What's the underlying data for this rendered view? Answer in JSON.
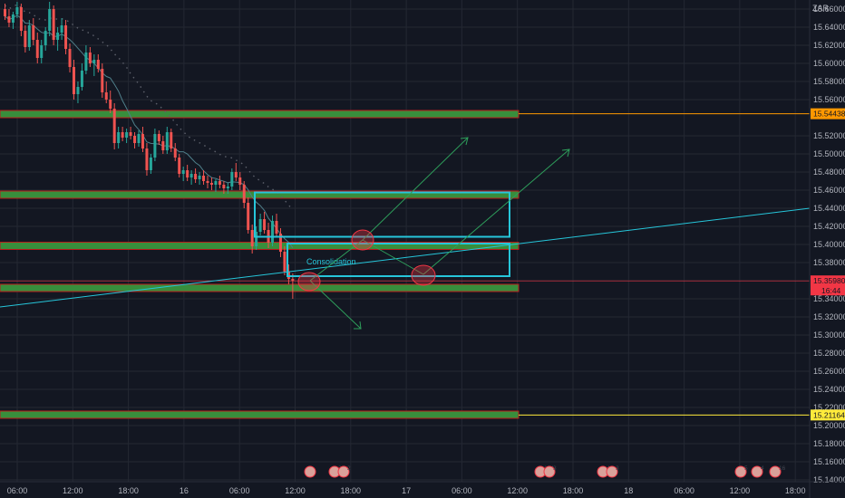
{
  "chart_data": {
    "type": "candlestick",
    "currency": "ZAR",
    "y_axis_ticks": [
      "15.66000",
      "15.64000",
      "15.62000",
      "15.60000",
      "15.58000",
      "15.56000",
      "15.52000",
      "15.50000",
      "15.48000",
      "15.46000",
      "15.44000",
      "15.42000",
      "15.40000",
      "15.38000",
      "15.36000",
      "15.34000",
      "15.32000",
      "15.30000",
      "15.28000",
      "15.26000",
      "15.24000",
      "15.22000",
      "15.20000",
      "15.18000",
      "15.16000",
      "15.14000"
    ],
    "x_axis_ticks": [
      "06:00",
      "12:00",
      "18:00",
      "16",
      "06:00",
      "12:00",
      "18:00",
      "17",
      "06:00",
      "12:00",
      "18:00",
      "18",
      "06:00",
      "12:00",
      "18:00"
    ],
    "ylim": [
      15.132,
      15.668
    ],
    "price_levels": [
      {
        "label": "15.54438",
        "value": 15.54438,
        "color": "#ff9800"
      },
      {
        "label": "15.21164",
        "value": 15.21164,
        "color": "#ffeb3b"
      }
    ],
    "current_price": {
      "label": "15.35980",
      "value": 15.3598,
      "countdown": "16:44",
      "color": "#f23645"
    },
    "zones": [
      {
        "value": 15.544,
        "color": "#388e3c"
      },
      {
        "value": 15.455,
        "color": "#388e3c"
      },
      {
        "value": 15.3985,
        "color": "#388e3c"
      },
      {
        "value": 15.352,
        "color": "#388e3c"
      },
      {
        "value": 15.212,
        "color": "#388e3c"
      }
    ],
    "consolidation_label": "Consolidation",
    "event_markers": [
      {
        "text": ""
      },
      {
        "text": "3"
      },
      {
        "text": "2"
      },
      {
        "text": "104"
      },
      {
        "text": "3"
      },
      {
        "text": "4"
      },
      {
        "text": "3"
      },
      {
        "text": "5"
      },
      {
        "text": "4"
      },
      {
        "text": "16"
      }
    ],
    "candles": [
      [
        15.66,
        15.666,
        15.648,
        15.652
      ],
      [
        15.652,
        15.66,
        15.64,
        15.645
      ],
      [
        15.645,
        15.657,
        15.638,
        15.654
      ],
      [
        15.654,
        15.668,
        15.65,
        15.662
      ],
      [
        15.662,
        15.666,
        15.63,
        15.636
      ],
      [
        15.636,
        15.642,
        15.612,
        15.618
      ],
      [
        15.618,
        15.648,
        15.614,
        15.642
      ],
      [
        15.642,
        15.65,
        15.62,
        15.626
      ],
      [
        15.626,
        15.634,
        15.6,
        15.606
      ],
      [
        15.606,
        15.626,
        15.6,
        15.62
      ],
      [
        15.62,
        15.64,
        15.614,
        15.636
      ],
      [
        15.636,
        15.668,
        15.63,
        15.66
      ],
      [
        15.66,
        15.664,
        15.62,
        15.626
      ],
      [
        15.626,
        15.64,
        15.614,
        15.634
      ],
      [
        15.634,
        15.65,
        15.626,
        15.642
      ],
      [
        15.642,
        15.648,
        15.61,
        15.616
      ],
      [
        15.616,
        15.622,
        15.59,
        15.596
      ],
      [
        15.596,
        15.604,
        15.56,
        15.566
      ],
      [
        15.566,
        15.58,
        15.556,
        15.574
      ],
      [
        15.574,
        15.6,
        15.57,
        15.592
      ],
      [
        15.592,
        15.62,
        15.588,
        15.612
      ],
      [
        15.612,
        15.618,
        15.596,
        15.6
      ],
      [
        15.6,
        15.61,
        15.586,
        15.604
      ],
      [
        15.604,
        15.61,
        15.59,
        15.594
      ],
      [
        15.594,
        15.6,
        15.562,
        15.568
      ],
      [
        15.568,
        15.58,
        15.556,
        15.56
      ],
      [
        15.56,
        15.57,
        15.545,
        15.55
      ],
      [
        15.55,
        15.556,
        15.505,
        15.512
      ],
      [
        15.512,
        15.53,
        15.506,
        15.524
      ],
      [
        15.524,
        15.53,
        15.514,
        15.518
      ],
      [
        15.518,
        15.528,
        15.512,
        15.524
      ],
      [
        15.524,
        15.53,
        15.516,
        15.52
      ],
      [
        15.52,
        15.524,
        15.506,
        15.512
      ],
      [
        15.512,
        15.526,
        15.508,
        15.522
      ],
      [
        15.522,
        15.53,
        15.502,
        15.506
      ],
      [
        15.506,
        15.512,
        15.476,
        15.482
      ],
      [
        15.482,
        15.5,
        15.478,
        15.496
      ],
      [
        15.496,
        15.528,
        15.492,
        15.522
      ],
      [
        15.522,
        15.526,
        15.51,
        15.514
      ],
      [
        15.514,
        15.52,
        15.5,
        15.504
      ],
      [
        15.504,
        15.53,
        15.5,
        15.524
      ],
      [
        15.524,
        15.528,
        15.502,
        15.506
      ],
      [
        15.506,
        15.512,
        15.492,
        15.496
      ],
      [
        15.496,
        15.5,
        15.474,
        15.478
      ],
      [
        15.478,
        15.486,
        15.47,
        15.482
      ],
      [
        15.482,
        15.488,
        15.47,
        15.474
      ],
      [
        15.474,
        15.482,
        15.466,
        15.478
      ],
      [
        15.478,
        15.484,
        15.468,
        15.472
      ],
      [
        15.472,
        15.48,
        15.466,
        15.476
      ],
      [
        15.476,
        15.482,
        15.466,
        15.47
      ],
      [
        15.47,
        15.476,
        15.462,
        15.468
      ],
      [
        15.468,
        15.474,
        15.46,
        15.466
      ],
      [
        15.466,
        15.472,
        15.458,
        15.47
      ],
      [
        15.47,
        15.476,
        15.462,
        15.466
      ],
      [
        15.466,
        15.47,
        15.456,
        15.462
      ],
      [
        15.462,
        15.468,
        15.456,
        15.464
      ],
      [
        15.464,
        15.484,
        15.46,
        15.48
      ],
      [
        15.48,
        15.49,
        15.47,
        15.474
      ],
      [
        15.474,
        15.48,
        15.46,
        15.466
      ],
      [
        15.466,
        15.47,
        15.44,
        15.446
      ],
      [
        15.446,
        15.452,
        15.412,
        15.416
      ],
      [
        15.416,
        15.422,
        15.39,
        15.398
      ],
      [
        15.398,
        15.42,
        15.394,
        15.414
      ],
      [
        15.414,
        15.434,
        15.41,
        15.428
      ],
      [
        15.428,
        15.436,
        15.412,
        15.416
      ],
      [
        15.416,
        15.424,
        15.396,
        15.402
      ],
      [
        15.402,
        15.432,
        15.398,
        15.426
      ],
      [
        15.426,
        15.434,
        15.408,
        15.412
      ],
      [
        15.412,
        15.418,
        15.386,
        15.392
      ],
      [
        15.392,
        15.398,
        15.366,
        15.37
      ],
      [
        15.37,
        15.378,
        15.356,
        15.362
      ],
      [
        15.362,
        15.368,
        15.34,
        15.36
      ]
    ]
  }
}
